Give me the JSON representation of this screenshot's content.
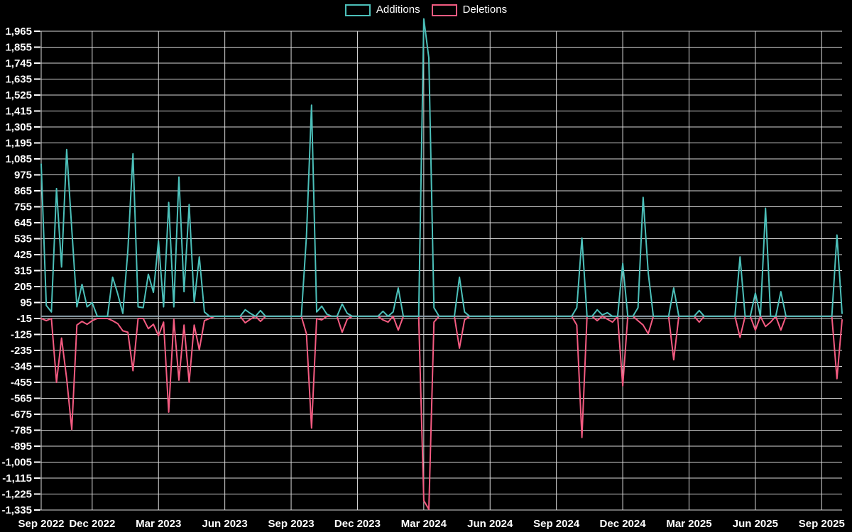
{
  "page": {
    "background": "#000000"
  },
  "legend": {
    "items": [
      {
        "label": "Additions",
        "color": "#4cc0ba"
      },
      {
        "label": "Deletions",
        "color": "#f45b81"
      }
    ]
  },
  "chart_data": {
    "type": "line",
    "title": "",
    "x_axis": {
      "unit": "week",
      "tick_labels": [
        "Sep 2022",
        "Dec 2022",
        "Mar 2023",
        "Jun 2023",
        "Sep 2023",
        "Dec 2023",
        "Mar 2024",
        "Jun 2024",
        "Sep 2024",
        "Dec 2024",
        "Mar 2025",
        "Jun 2025",
        "Sep 2025"
      ],
      "tick_week_indices": [
        0,
        10,
        23,
        36,
        49,
        62,
        75,
        88,
        101,
        114,
        127,
        140,
        153
      ]
    },
    "y_axis": {
      "min": -1335,
      "max": 1965,
      "tick_step": 110,
      "tick_values": [
        1965,
        1855,
        1745,
        1635,
        1525,
        1415,
        1305,
        1195,
        1085,
        975,
        865,
        755,
        645,
        535,
        425,
        315,
        205,
        95,
        -15,
        -125,
        -235,
        -345,
        -455,
        -565,
        -675,
        -785,
        -895,
        -1005,
        -1115,
        -1225,
        -1335
      ],
      "tick_labels": [
        "1,965",
        "1,855",
        "1,745",
        "1,635",
        "1,525",
        "1,415",
        "1,305",
        "1,195",
        "1,085",
        "975",
        "865",
        "755",
        "645",
        "535",
        "425",
        "315",
        "205",
        "95",
        "-15",
        "-125",
        "-235",
        "-345",
        "-455",
        "-565",
        "-675",
        "-785",
        "-895",
        "-1,005",
        "-1,115",
        "-1,225",
        "-1,335"
      ]
    },
    "grid": true,
    "legend_position": "top-center",
    "colors": {
      "background": "#000000",
      "grid": "#d9d9d9",
      "text": "#ffffff",
      "zero_line": "#8fa3ad",
      "additions": "#4cc0ba",
      "deletions": "#f45b81"
    },
    "series": [
      {
        "name": "Deletions",
        "color": "#f45b81",
        "values": [
          -15,
          -30,
          -15,
          -455,
          -150,
          -430,
          -780,
          -60,
          -35,
          -55,
          -30,
          -15,
          -15,
          -15,
          -30,
          -50,
          -100,
          -110,
          -375,
          -15,
          -15,
          -85,
          -55,
          -135,
          -40,
          -660,
          -20,
          -440,
          -60,
          -455,
          -60,
          -230,
          -30,
          -15,
          0,
          0,
          0,
          0,
          0,
          0,
          -45,
          -20,
          0,
          -35,
          0,
          0,
          0,
          0,
          0,
          0,
          0,
          0,
          -120,
          -770,
          -15,
          -25,
          0,
          0,
          0,
          -110,
          -20,
          0,
          0,
          0,
          0,
          0,
          0,
          -25,
          -40,
          0,
          -95,
          0,
          0,
          0,
          0,
          -1270,
          -1330,
          -40,
          0,
          0,
          0,
          0,
          -220,
          -25,
          0,
          0,
          0,
          0,
          0,
          0,
          0,
          0,
          0,
          0,
          0,
          0,
          0,
          0,
          0,
          0,
          0,
          0,
          0,
          0,
          0,
          -60,
          -835,
          0,
          0,
          -30,
          0,
          -20,
          -40,
          0,
          -480,
          0,
          0,
          -30,
          -60,
          -120,
          0,
          0,
          0,
          0,
          -300,
          0,
          0,
          0,
          0,
          -40,
          0,
          0,
          0,
          0,
          0,
          0,
          0,
          -145,
          0,
          0,
          -95,
          0,
          -70,
          -40,
          0,
          -95,
          0,
          0,
          0,
          0,
          0,
          0,
          0,
          0,
          0,
          0,
          -430,
          -25
        ]
      },
      {
        "name": "Additions",
        "color": "#4cc0ba",
        "values": [
          1050,
          75,
          30,
          880,
          340,
          1150,
          600,
          65,
          220,
          65,
          95,
          0,
          0,
          0,
          270,
          155,
          20,
          455,
          1120,
          65,
          60,
          290,
          165,
          520,
          65,
          785,
          65,
          960,
          170,
          770,
          95,
          410,
          30,
          0,
          0,
          0,
          0,
          0,
          0,
          0,
          45,
          20,
          0,
          40,
          0,
          0,
          0,
          0,
          0,
          0,
          0,
          0,
          550,
          1455,
          30,
          70,
          15,
          0,
          0,
          85,
          20,
          0,
          0,
          0,
          0,
          0,
          0,
          35,
          0,
          30,
          195,
          0,
          0,
          0,
          0,
          2050,
          1780,
          60,
          0,
          0,
          0,
          0,
          270,
          30,
          0,
          0,
          0,
          0,
          0,
          0,
          0,
          0,
          0,
          0,
          0,
          0,
          0,
          0,
          0,
          0,
          0,
          0,
          0,
          0,
          0,
          60,
          540,
          0,
          0,
          45,
          10,
          25,
          0,
          0,
          365,
          0,
          0,
          60,
          820,
          300,
          0,
          0,
          0,
          0,
          195,
          0,
          0,
          0,
          0,
          40,
          0,
          0,
          0,
          0,
          0,
          0,
          0,
          410,
          0,
          0,
          160,
          0,
          745,
          0,
          0,
          170,
          0,
          0,
          0,
          0,
          0,
          0,
          0,
          0,
          0,
          0,
          560,
          20
        ]
      }
    ]
  }
}
